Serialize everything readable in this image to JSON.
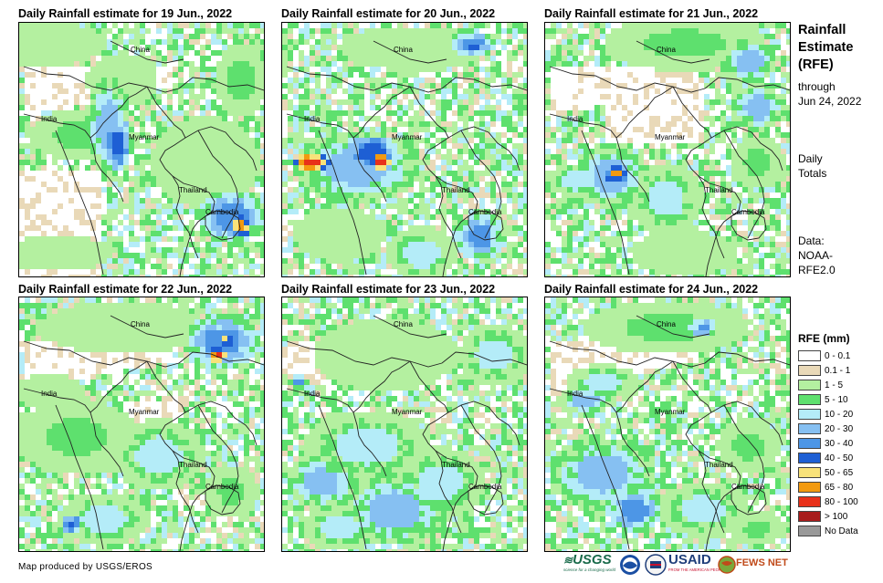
{
  "panels": [
    {
      "title": "Daily Rainfall estimate for 19 Jun., 2022",
      "labels": {
        "china": "China",
        "india": "India",
        "myanmar": "Myanmar",
        "thailand": "Thailand",
        "cambodia": "Cambodia"
      }
    },
    {
      "title": "Daily Rainfall estimate for 20 Jun., 2022",
      "labels": {
        "china": "China",
        "india": "India",
        "myanmar": "Myanmar",
        "thailand": "Thailand",
        "cambodia": "Cambodia"
      }
    },
    {
      "title": "Daily Rainfall estimate for 21 Jun., 2022",
      "labels": {
        "china": "China",
        "india": "India",
        "myanmar": "Myanmar",
        "thailand": "Thailand",
        "cambodia": "Cambodia"
      }
    },
    {
      "title": "Daily Rainfall estimate for 22 Jun., 2022",
      "labels": {
        "china": "China",
        "india": "India",
        "myanmar": "Myanmar",
        "thailand": "Thailand",
        "cambodia": "Cambodia"
      }
    },
    {
      "title": "Daily Rainfall estimate for 23 Jun., 2022",
      "labels": {
        "china": "China",
        "india": "India",
        "myanmar": "Myanmar",
        "thailand": "Thailand",
        "cambodia": "Cambodia"
      }
    },
    {
      "title": "Daily Rainfall estimate for 24 Jun., 2022",
      "labels": {
        "china": "China",
        "india": "India",
        "myanmar": "Myanmar",
        "thailand": "Thailand",
        "cambodia": "Cambodia"
      }
    }
  ],
  "sidebar": {
    "title_line1": "Rainfall",
    "title_line2": "Estimate",
    "title_line3": "(RFE)",
    "through": "through",
    "date": "Jun 24, 2022",
    "daily": "Daily",
    "totals": "Totals",
    "data_label": "Data:",
    "data_src1": "NOAA-",
    "data_src2": "RFE2.0"
  },
  "legend": {
    "title": "RFE (mm)",
    "items": [
      {
        "label": "0 - 0.1",
        "color": "#ffffff"
      },
      {
        "label": "0.1 - 1",
        "color": "#e9d9b8"
      },
      {
        "label": "1 - 5",
        "color": "#b4f0a0"
      },
      {
        "label": "5 - 10",
        "color": "#5ee06e"
      },
      {
        "label": "10 - 20",
        "color": "#b4ecf8"
      },
      {
        "label": "20 - 30",
        "color": "#86c0f2"
      },
      {
        "label": "30 - 40",
        "color": "#4d96e6"
      },
      {
        "label": "40 - 50",
        "color": "#1e5fd4"
      },
      {
        "label": "50 - 65",
        "color": "#f8e27a"
      },
      {
        "label": "65 - 80",
        "color": "#f29a10"
      },
      {
        "label": "80 - 100",
        "color": "#e8311a"
      },
      {
        "label": "> 100",
        "color": "#a81c1c"
      },
      {
        "label": "No Data",
        "color": "#999999"
      }
    ]
  },
  "footer": {
    "credit": "Map produced by USGS/EROS",
    "usgs": "USGS",
    "usgs_tag": "science for a changing world",
    "usaid": "USAID",
    "usaid_tag": "FROM THE AMERICAN PEOPLE",
    "fewsnet": "FEWS NET"
  }
}
